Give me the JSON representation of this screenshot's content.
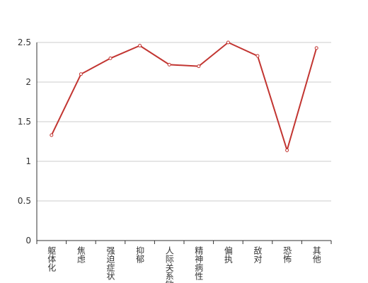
{
  "chart_data": {
    "type": "line",
    "categories": [
      "躯体化",
      "焦虑",
      "强迫症状",
      "抑郁",
      "人际关系敏感",
      "精神病性",
      "偏执",
      "敌对",
      "恐怖",
      "其他"
    ],
    "values": [
      1.33,
      2.1,
      2.3,
      2.46,
      2.22,
      2.2,
      2.5,
      2.33,
      1.14,
      2.43
    ],
    "color": "#c23531",
    "ylim": [
      0,
      2.5
    ],
    "yticks": [
      0,
      0.5,
      1,
      1.5,
      2,
      2.5
    ],
    "grid": true
  }
}
